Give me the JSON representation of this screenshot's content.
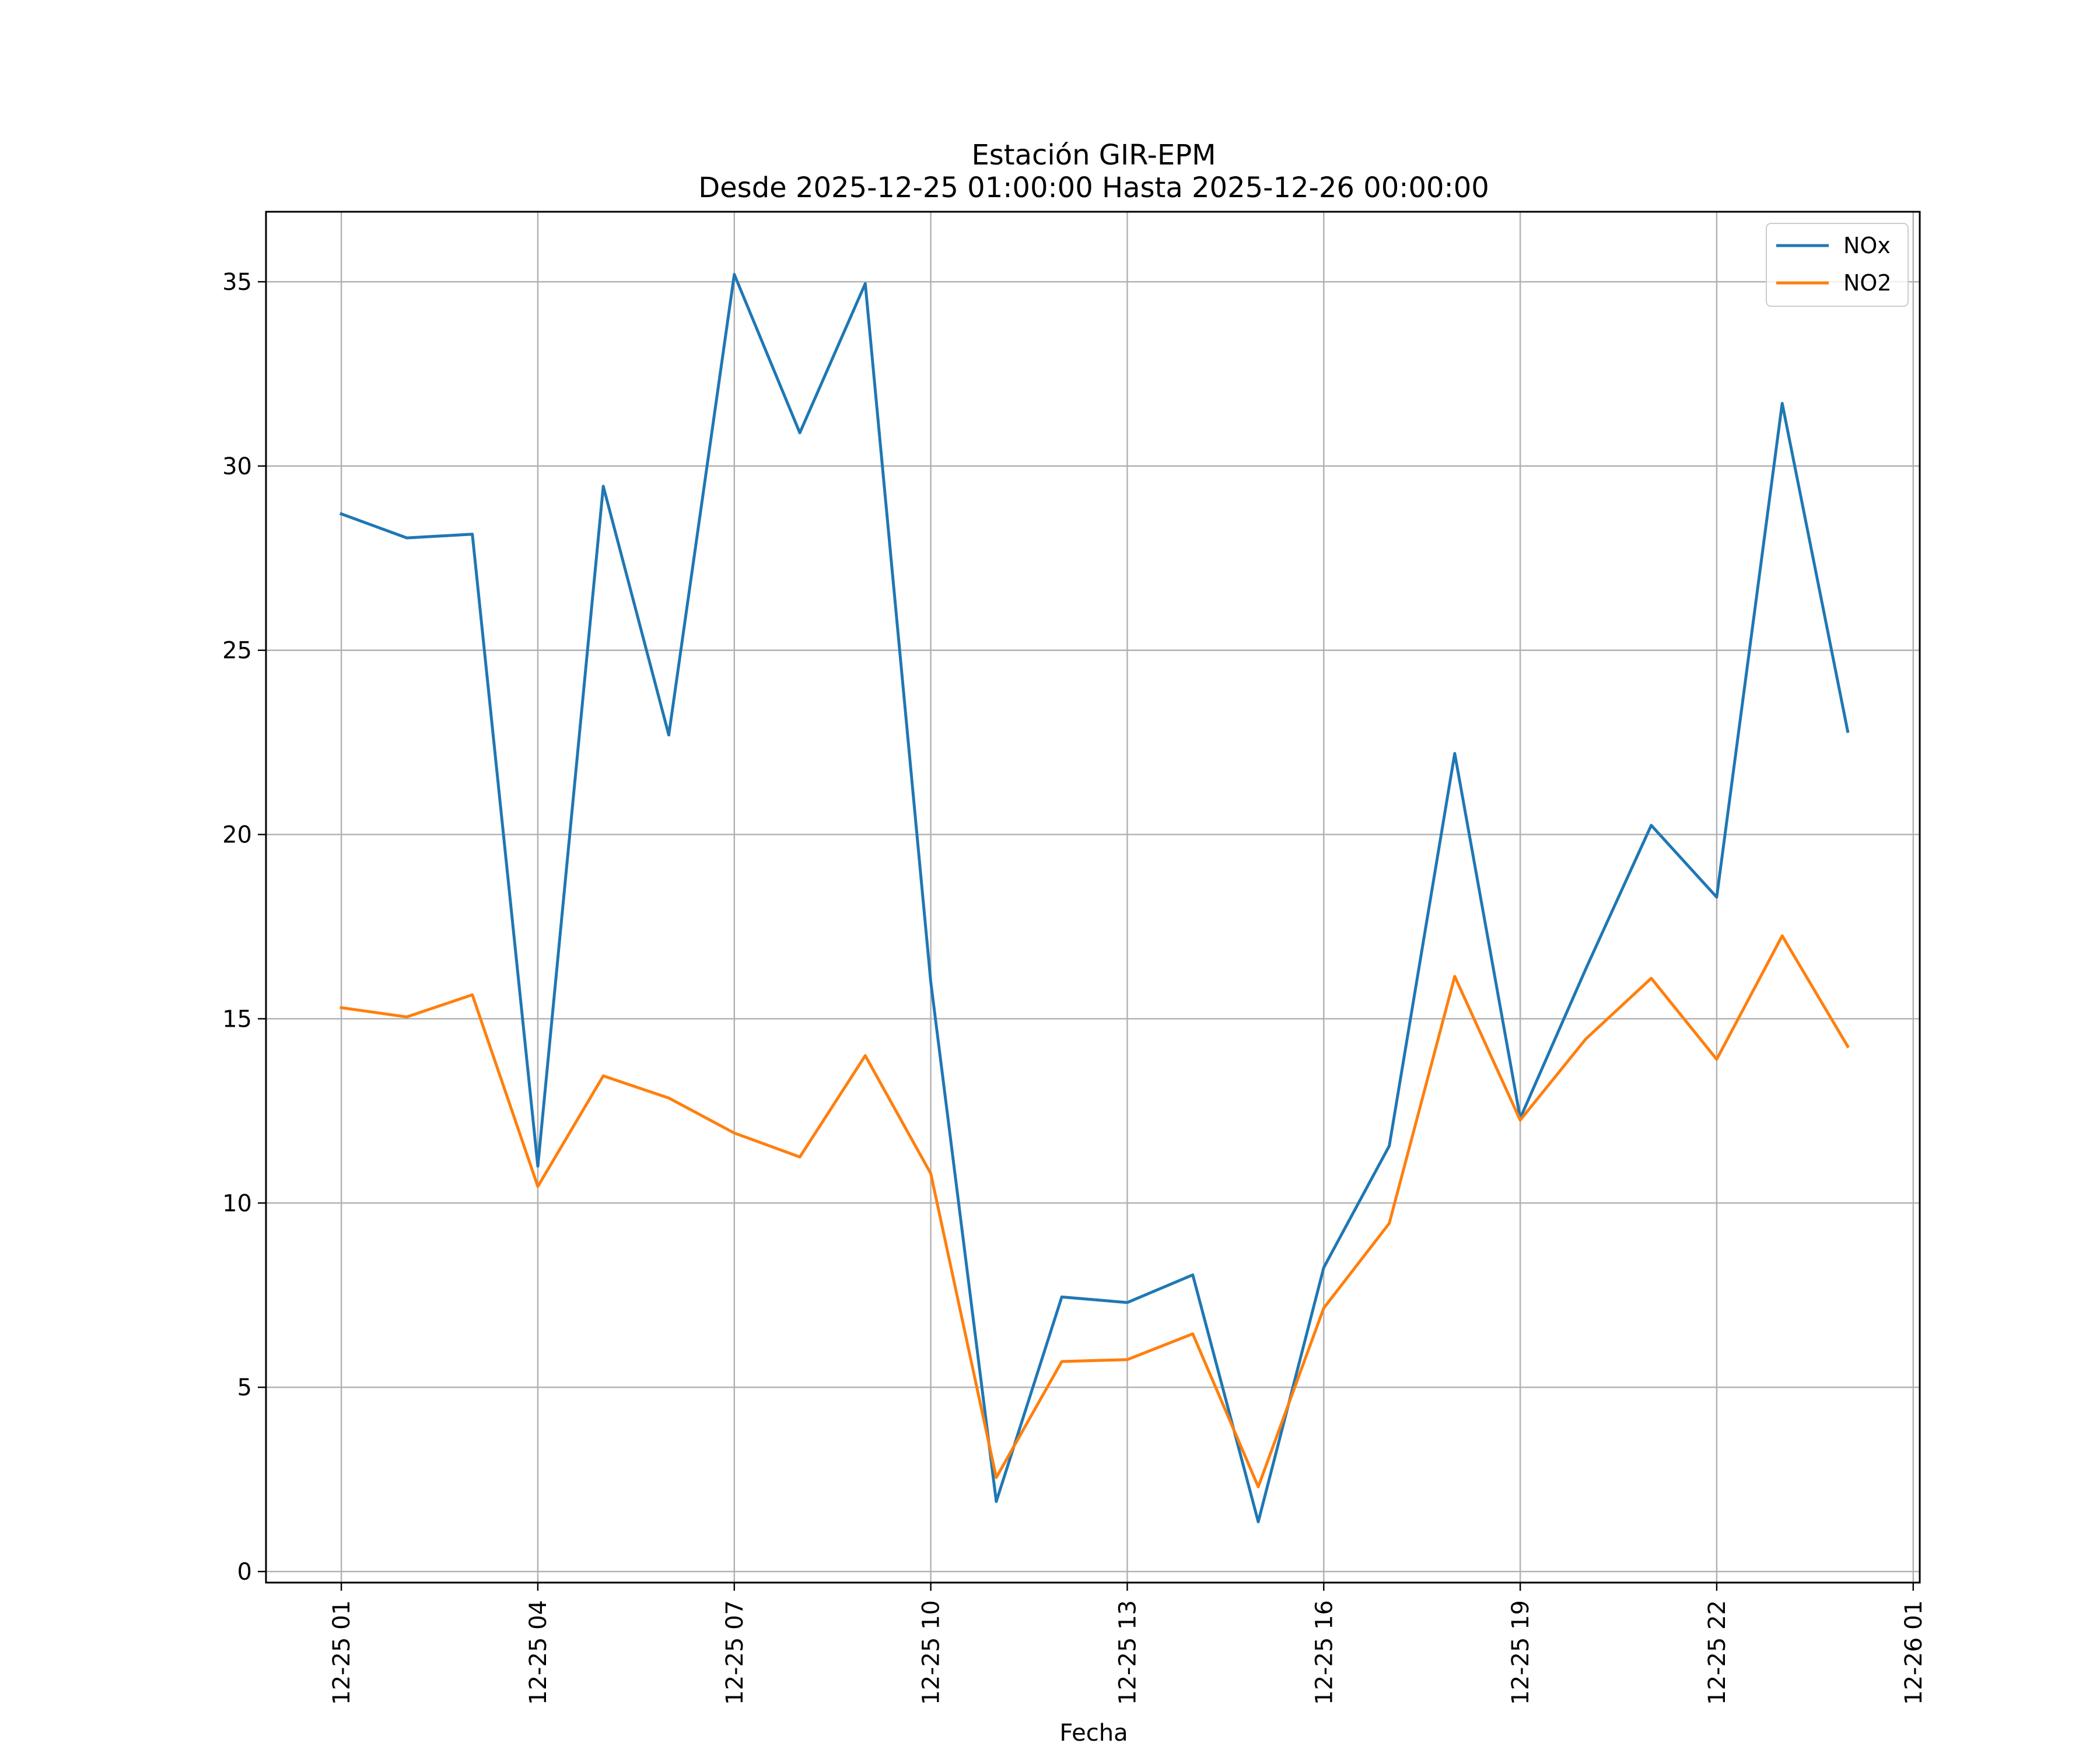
{
  "chart_data": {
    "type": "line",
    "title": "Estación GIR-EPM",
    "subtitle": "Desde 2025-12-25 01:00:00 Hasta 2025-12-26 00:00:00",
    "xlabel": "Fecha",
    "ylabel": "",
    "x_hours": [
      0,
      1,
      2,
      3,
      4,
      5,
      6,
      7,
      8,
      9,
      10,
      11,
      12,
      13,
      14,
      15,
      16,
      17,
      18,
      19,
      20,
      21,
      22,
      23
    ],
    "xlim": [
      -1.15,
      24.1
    ],
    "ylim": [
      -0.3,
      36.9
    ],
    "xticks": [
      {
        "hour": 0,
        "label": "12-25 01"
      },
      {
        "hour": 3,
        "label": "12-25 04"
      },
      {
        "hour": 6,
        "label": "12-25 07"
      },
      {
        "hour": 9,
        "label": "12-25 10"
      },
      {
        "hour": 12,
        "label": "12-25 13"
      },
      {
        "hour": 15,
        "label": "12-25 16"
      },
      {
        "hour": 18,
        "label": "12-25 19"
      },
      {
        "hour": 21,
        "label": "12-25 22"
      },
      {
        "hour": 24,
        "label": "12-26 01"
      }
    ],
    "yticks": [
      0,
      5,
      10,
      15,
      20,
      25,
      30,
      35
    ],
    "grid": true,
    "legend_position": "top-right",
    "series": [
      {
        "name": "NOx",
        "color": "#1f77b4",
        "values": [
          28.7,
          28.05,
          28.15,
          11.0,
          29.45,
          22.7,
          35.2,
          30.9,
          34.95,
          16.0,
          1.9,
          7.45,
          7.3,
          8.05,
          1.35,
          8.25,
          11.55,
          22.2,
          12.3,
          16.35,
          20.25,
          18.3,
          31.7,
          22.8
        ]
      },
      {
        "name": "NO2",
        "color": "#ff7f0e",
        "values": [
          15.3,
          15.05,
          15.65,
          10.45,
          13.45,
          12.85,
          11.9,
          11.25,
          14.0,
          10.8,
          2.55,
          5.7,
          5.75,
          6.45,
          2.3,
          7.15,
          9.45,
          16.15,
          12.25,
          14.45,
          16.1,
          13.9,
          17.25,
          14.25
        ]
      }
    ]
  }
}
